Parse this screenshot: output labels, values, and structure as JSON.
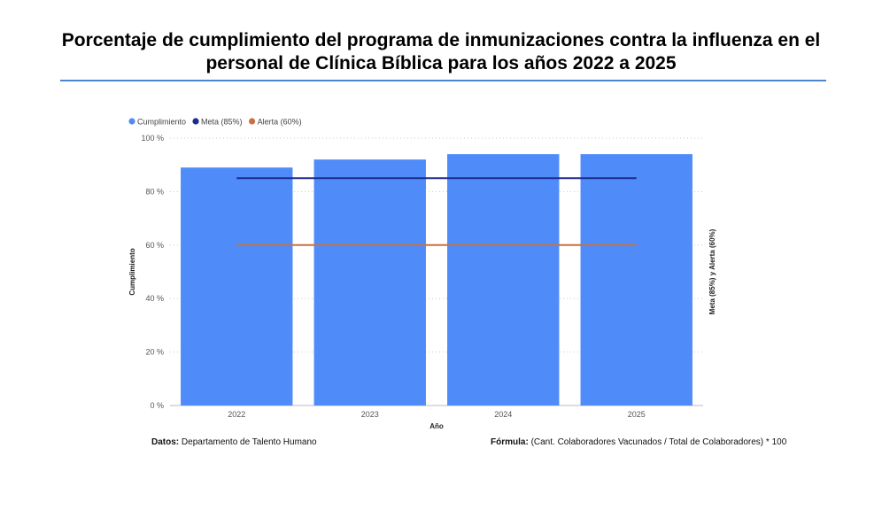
{
  "title": "Porcentaje de cumplimiento del programa de inmunizaciones contra la influenza en el personal de Clínica Bíblica para los años 2022 a 2025",
  "chart_data": {
    "type": "bar",
    "categories": [
      "2022",
      "2023",
      "2024",
      "2025"
    ],
    "series": [
      {
        "name": "Cumplimiento",
        "kind": "bar",
        "color": "#4f8cf9",
        "values": [
          89,
          92,
          94,
          94
        ]
      },
      {
        "name": "Meta (85%)",
        "kind": "line",
        "color": "#1c2b8c",
        "values": [
          85,
          85,
          85,
          85
        ]
      },
      {
        "name": "Alerta (60%)",
        "kind": "line",
        "color": "#c9703f",
        "values": [
          60,
          60,
          60,
          60
        ]
      }
    ],
    "xlabel": "Año",
    "ylabel": "Cumplimiento",
    "y2label": "Meta (85%) y Alerta (60%)",
    "ylim": [
      0,
      100
    ],
    "yticks": [
      0,
      20,
      40,
      60,
      80,
      100
    ],
    "ytick_labels": [
      "0 %",
      "20 %",
      "40 %",
      "60 %",
      "80 %",
      "100 %"
    ],
    "grid": true,
    "legend_position": "top-left"
  },
  "footer": {
    "source_label": "Datos:",
    "source_value": "Departamento de Talento Humano",
    "formula_label": "Fórmula:",
    "formula_value": "(Cant. Colaboradores Vacunados / Total de Colaboradores) * 100"
  }
}
